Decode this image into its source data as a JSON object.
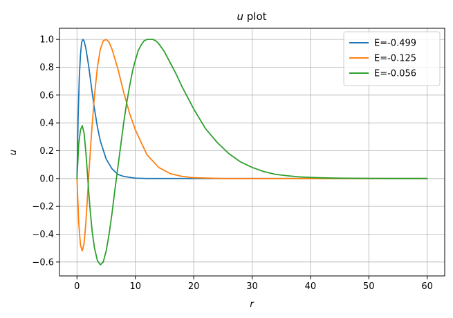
{
  "chart_data": {
    "type": "line",
    "title_var": "u",
    "title_rest": " plot",
    "xlabel": "r",
    "ylabel": "u",
    "xlim": [
      -3,
      63
    ],
    "ylim": [
      -0.7,
      1.08
    ],
    "xticks": [
      0,
      10,
      20,
      30,
      40,
      50,
      60
    ],
    "xtick_labels": [
      "0",
      "10",
      "20",
      "30",
      "40",
      "50",
      "60"
    ],
    "yticks": [
      -0.6,
      -0.4,
      -0.2,
      0.0,
      0.2,
      0.4,
      0.6,
      0.8,
      1.0
    ],
    "ytick_labels": [
      "−0.6",
      "−0.4",
      "−0.2",
      "0.0",
      "0.2",
      "0.4",
      "0.6",
      "0.8",
      "1.0"
    ],
    "grid": true,
    "legend_position": "top-right",
    "series": [
      {
        "name": "E=-0.499",
        "color": "#1f77b4",
        "x": [
          0,
          0.2,
          0.4,
          0.6,
          0.8,
          1.0,
          1.2,
          1.5,
          2,
          2.5,
          3,
          3.5,
          4,
          5,
          6,
          7,
          8,
          10,
          12,
          15,
          20,
          30,
          40,
          50,
          60
        ],
        "y": [
          0,
          0.45,
          0.73,
          0.89,
          0.98,
          1.0,
          0.99,
          0.94,
          0.81,
          0.65,
          0.5,
          0.37,
          0.27,
          0.14,
          0.07,
          0.03,
          0.015,
          0.003,
          0.0,
          0.0,
          0.0,
          0.0,
          0.0,
          0.0,
          0.0
        ]
      },
      {
        "name": "E=-0.125",
        "color": "#ff7f0e",
        "x": [
          0,
          0.3,
          0.6,
          0.9,
          1.2,
          1.5,
          1.8,
          2.1,
          2.5,
          3,
          3.5,
          4,
          4.5,
          5,
          5.5,
          6,
          7,
          8,
          9,
          10,
          12,
          14,
          16,
          18,
          20,
          25,
          30,
          40,
          50,
          60
        ],
        "y": [
          0,
          -0.32,
          -0.48,
          -0.52,
          -0.47,
          -0.33,
          -0.13,
          0.08,
          0.33,
          0.6,
          0.8,
          0.93,
          0.99,
          1.0,
          0.98,
          0.93,
          0.79,
          0.62,
          0.47,
          0.35,
          0.17,
          0.08,
          0.035,
          0.015,
          0.006,
          0.0,
          0.0,
          0.0,
          0.0,
          0.0
        ]
      },
      {
        "name": "E=-0.056",
        "color": "#2ca02c",
        "x": [
          0,
          0.3,
          0.6,
          0.9,
          1.2,
          1.5,
          1.8,
          2.2,
          2.6,
          3,
          3.5,
          4,
          4.5,
          5,
          5.5,
          6,
          6.5,
          7,
          7.5,
          8,
          8.5,
          9,
          9.5,
          10,
          10.5,
          11,
          11.5,
          12,
          12.5,
          13,
          13.5,
          14,
          15,
          16,
          17,
          18,
          19,
          20,
          22,
          24,
          26,
          28,
          30,
          32,
          34,
          36,
          38,
          40,
          42,
          45,
          50,
          55,
          60
        ],
        "y": [
          0,
          0.25,
          0.35,
          0.38,
          0.33,
          0.2,
          0.03,
          -0.2,
          -0.38,
          -0.5,
          -0.59,
          -0.62,
          -0.6,
          -0.52,
          -0.4,
          -0.25,
          -0.08,
          0.08,
          0.24,
          0.4,
          0.54,
          0.66,
          0.77,
          0.85,
          0.92,
          0.96,
          0.99,
          1.0,
          1.0,
          1.0,
          0.99,
          0.97,
          0.91,
          0.83,
          0.75,
          0.66,
          0.58,
          0.5,
          0.36,
          0.26,
          0.18,
          0.12,
          0.08,
          0.05,
          0.03,
          0.02,
          0.012,
          0.008,
          0.005,
          0.003,
          0.001,
          0.0,
          0.0
        ]
      }
    ]
  }
}
